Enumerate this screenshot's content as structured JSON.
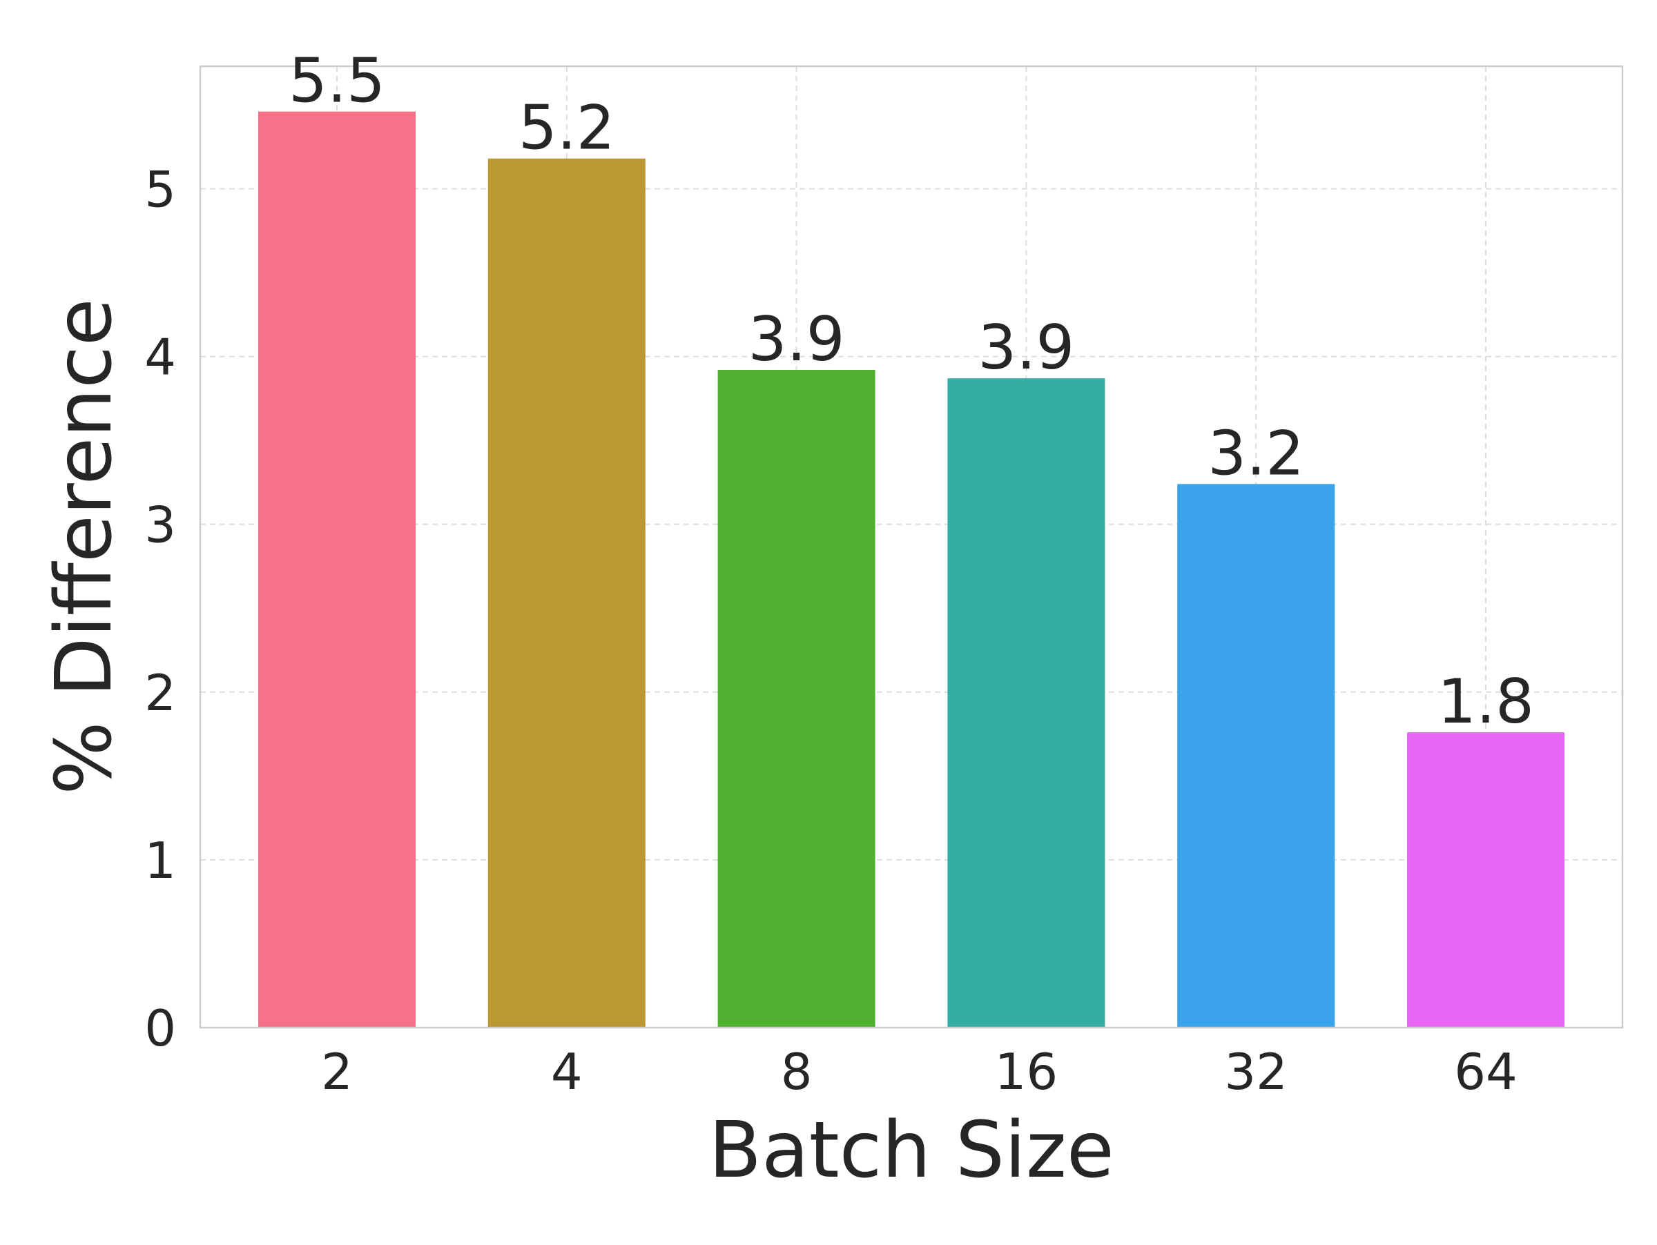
{
  "chart_data": {
    "type": "bar",
    "title": "",
    "xlabel": "Batch Size",
    "ylabel": "% Difference",
    "categories": [
      "2",
      "4",
      "8",
      "16",
      "32",
      "64"
    ],
    "values": [
      5.46,
      5.18,
      3.92,
      3.87,
      3.24,
      1.76
    ],
    "data_labels": [
      "5.5",
      "5.2",
      "3.9",
      "3.9",
      "3.2",
      "1.8"
    ],
    "colors": [
      "#f77189",
      "#bb9832",
      "#50b131",
      "#36ada4",
      "#3ba3ec",
      "#e866f4"
    ],
    "y_ticks": [
      0,
      1,
      2,
      3,
      4,
      5
    ],
    "ylim": [
      0,
      5.73
    ],
    "grid": true,
    "legend": "none"
  }
}
